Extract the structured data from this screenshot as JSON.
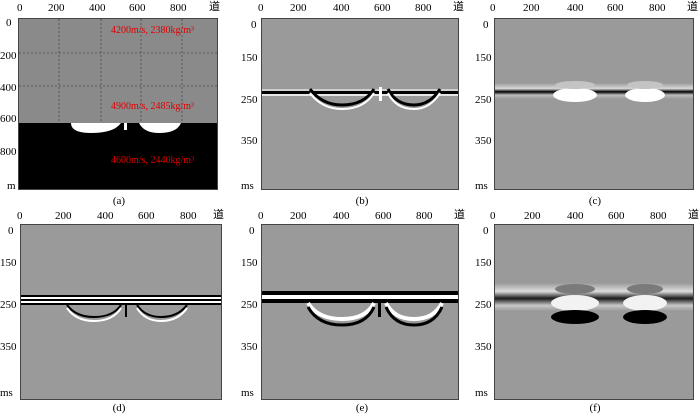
{
  "panels": [
    {
      "id": "a",
      "caption": "(a)",
      "x_ticks": [
        "0",
        "200",
        "400",
        "600",
        "800"
      ],
      "x_unit": "道",
      "y_ticks": [
        "0",
        "200",
        "400",
        "600",
        "800"
      ],
      "y_unit": "m",
      "annotations": [
        "4200m/s, 2380kg/m³",
        "4900m/s, 2485kg/m³",
        "4600m/s, 2440kg/m³"
      ]
    },
    {
      "id": "b",
      "caption": "(b)",
      "x_ticks": [
        "0",
        "200",
        "400",
        "600",
        "800"
      ],
      "x_unit": "道",
      "y_ticks": [
        "0",
        "150",
        "250",
        "350"
      ],
      "y_unit": "ms"
    },
    {
      "id": "c",
      "caption": "(c)",
      "x_ticks": [
        "0",
        "200",
        "400",
        "600",
        "800"
      ],
      "x_unit": "道",
      "y_ticks": [
        "0",
        "150",
        "250",
        "350"
      ],
      "y_unit": "ms"
    },
    {
      "id": "d",
      "caption": "(d)",
      "x_ticks": [
        "0",
        "200",
        "400",
        "600",
        "800"
      ],
      "x_unit": "道",
      "y_ticks": [
        "0",
        "150",
        "250",
        "350"
      ],
      "y_unit": "ms"
    },
    {
      "id": "e",
      "caption": "(e)",
      "x_ticks": [
        "0",
        "200",
        "400",
        "600",
        "800"
      ],
      "x_unit": "道",
      "y_ticks": [
        "0",
        "150",
        "250",
        "350"
      ],
      "y_unit": "ms"
    },
    {
      "id": "f",
      "caption": "(f)",
      "x_ticks": [
        "0",
        "200",
        "400",
        "600",
        "800"
      ],
      "x_unit": "道",
      "y_ticks": [
        "0",
        "150",
        "250",
        "350"
      ],
      "y_unit": "ms"
    }
  ]
}
